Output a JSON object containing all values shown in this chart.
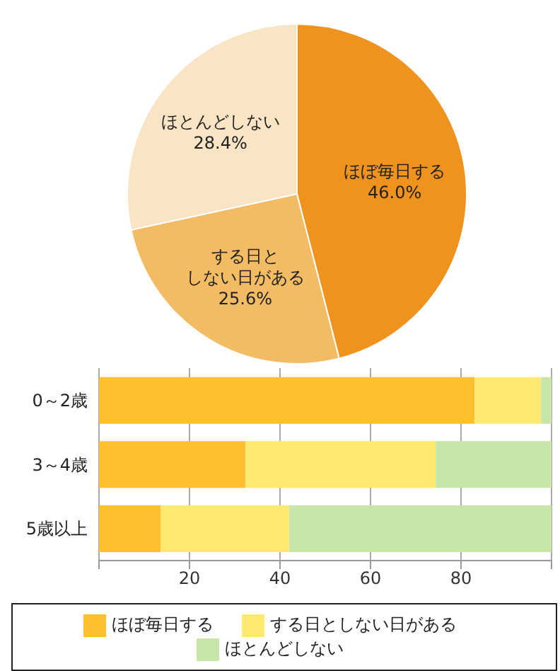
{
  "chart_data": [
    {
      "type": "pie",
      "categories": [
        "ほぼ毎日する",
        "する日としない日がある",
        "ほとんどしない"
      ],
      "values": [
        46.0,
        25.6,
        28.4
      ],
      "value_labels": [
        "46.0%",
        "25.6%",
        "28.4%"
      ],
      "colors": [
        "#f0931e",
        "#f4bb65",
        "#fae4c6"
      ]
    },
    {
      "type": "bar",
      "orientation": "horizontal",
      "stacked": true,
      "categories": [
        "0～2歳",
        "3～4歳",
        "5歳以上"
      ],
      "series": [
        {
          "name": "ほぼ毎日する",
          "color": "#fec02e",
          "values": [
            83.0,
            32.4,
            13.6
          ]
        },
        {
          "name": "する日としない日がある",
          "color": "#ffe971",
          "values": [
            14.7,
            42.0,
            28.4
          ]
        },
        {
          "name": "ほとんどしない",
          "color": "#c8e6a8",
          "values": [
            2.3,
            25.6,
            58.0
          ]
        }
      ],
      "xlim": [
        0,
        100
      ],
      "xticks": [
        {
          "value": 0,
          "label": null
        },
        20,
        40,
        60,
        80,
        {
          "value": 100,
          "label": null
        }
      ],
      "grid": "x",
      "legend": "bottom"
    }
  ]
}
